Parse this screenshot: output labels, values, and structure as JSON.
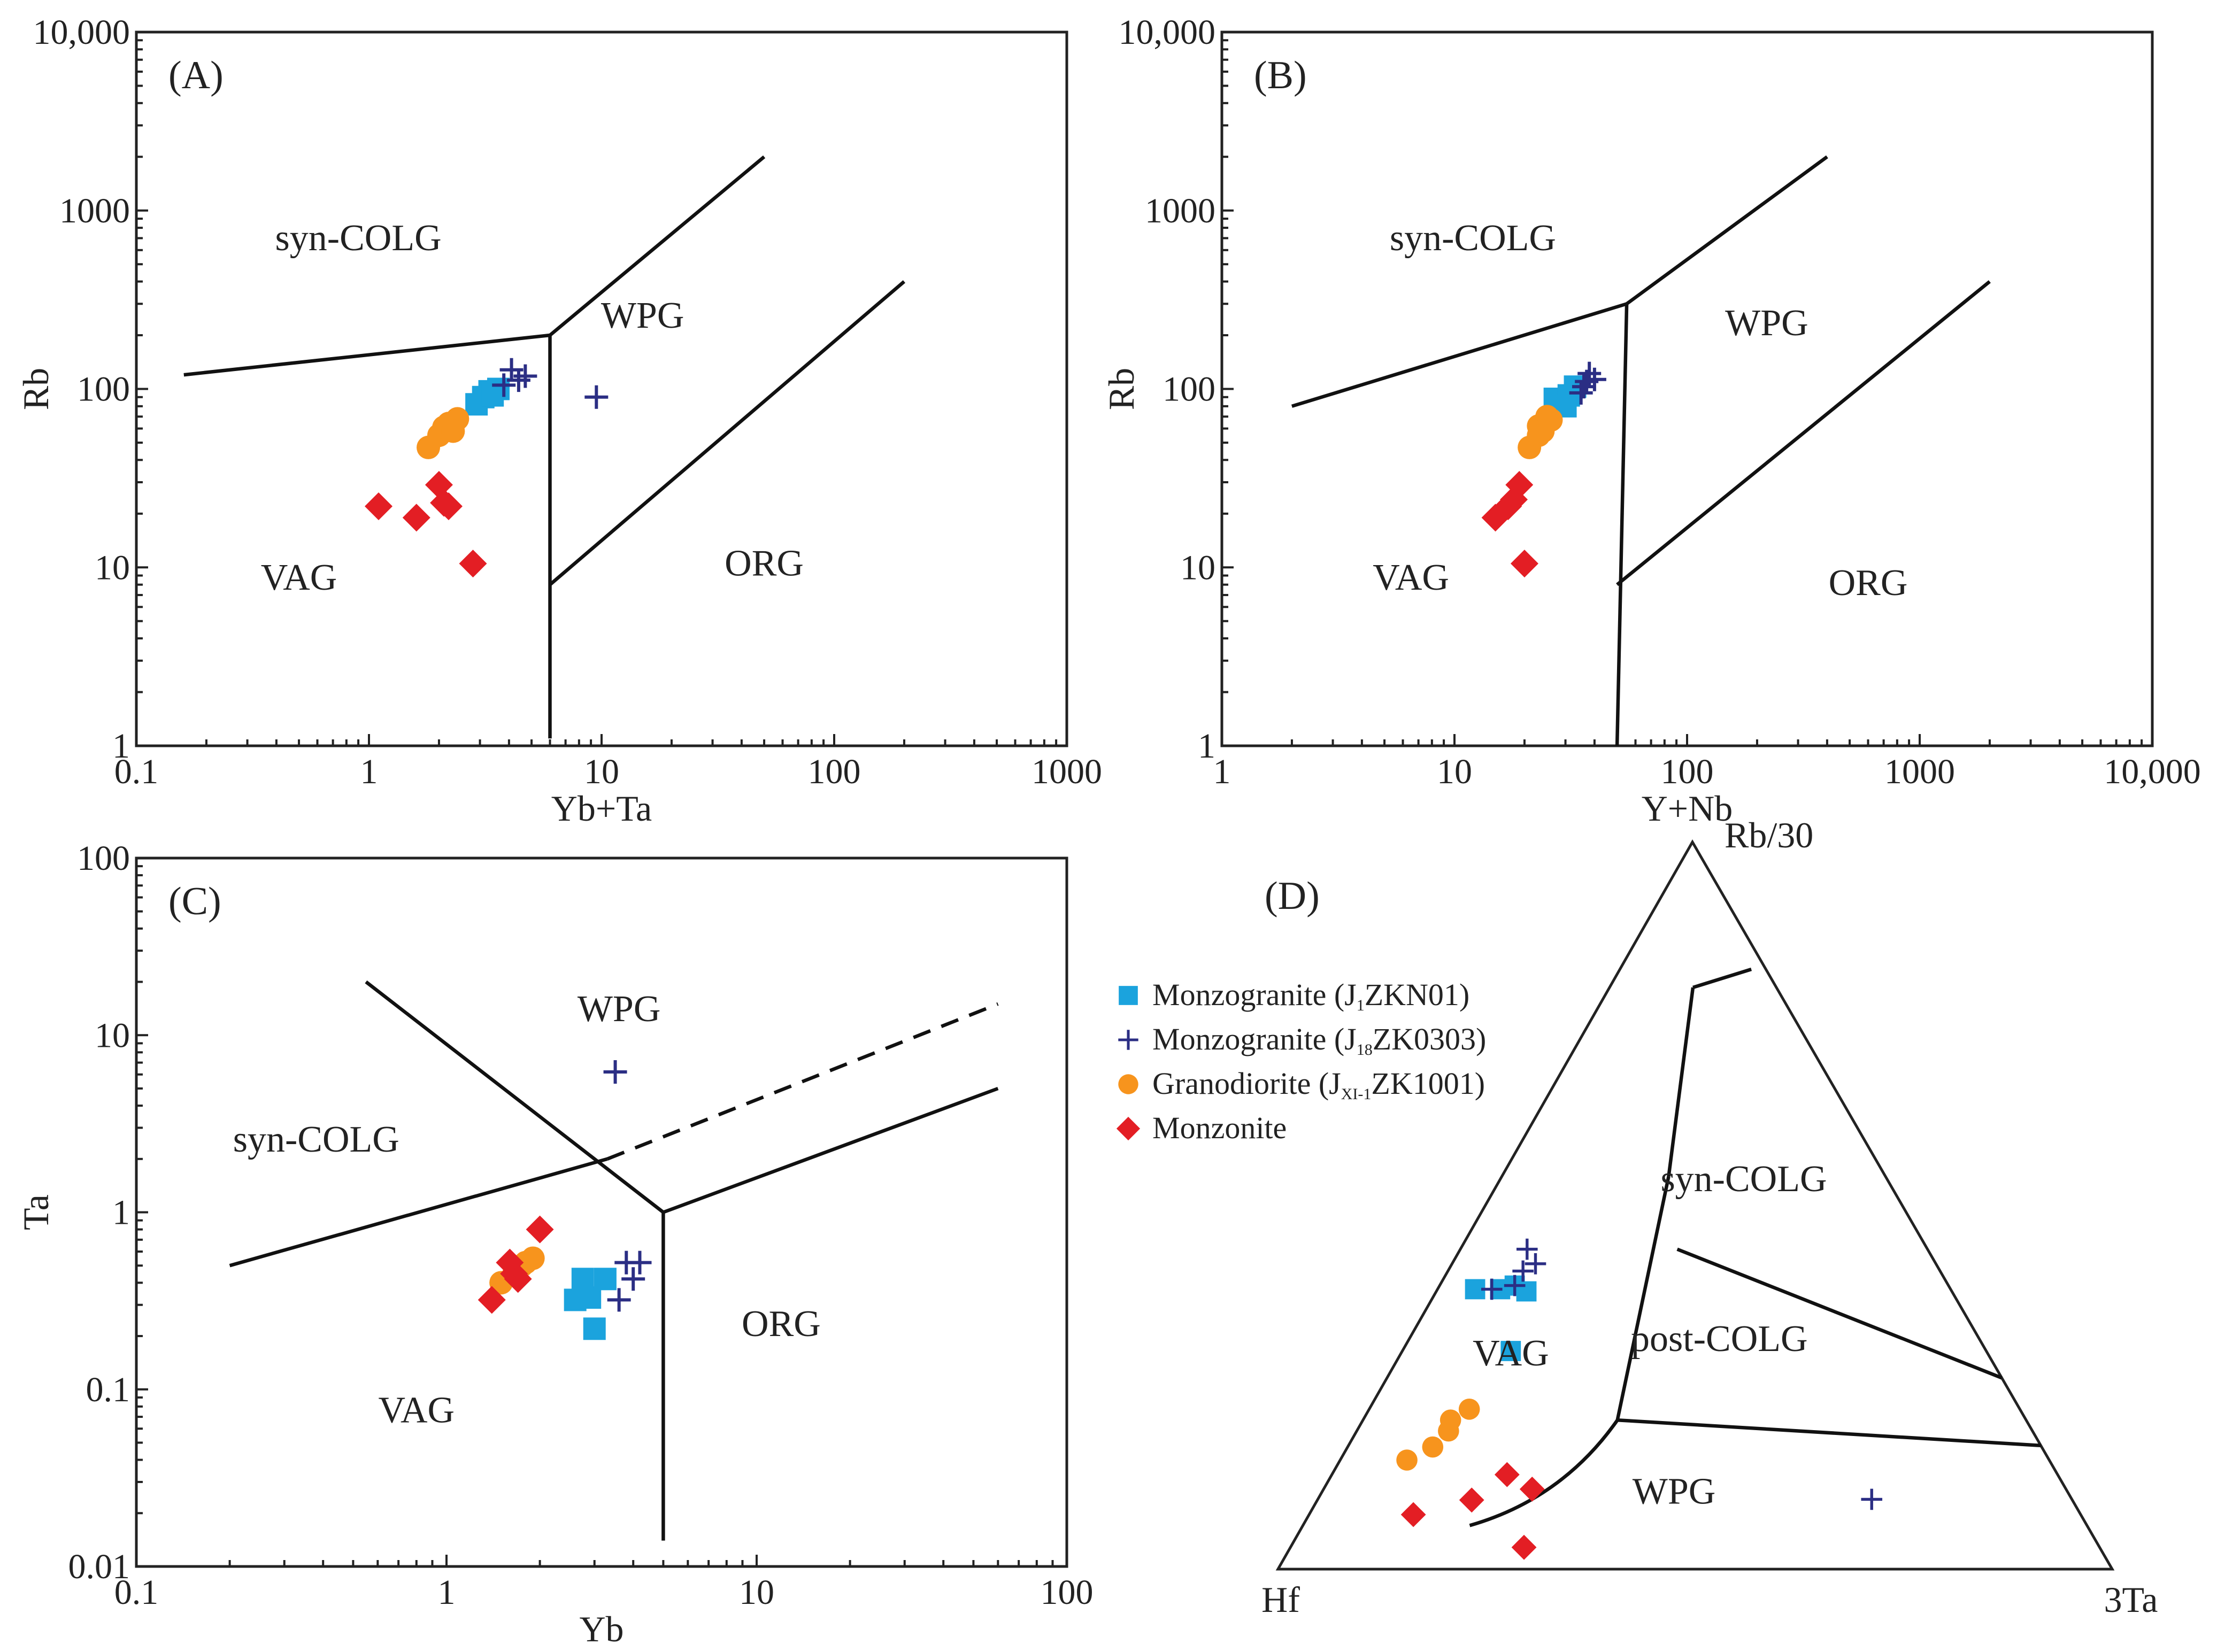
{
  "colors": {
    "monzogranite_j1": "#1ba3dd",
    "monzogranite_j18": "#2b2e84",
    "granodiorite": "#f7941d",
    "monzonite": "#e31e24",
    "lines": "#111111"
  },
  "legend": {
    "items": [
      {
        "key": "monzogranite_j1",
        "marker": "square",
        "prefix": "Monzogranite (J",
        "sub": "1",
        "suffix": "ZKN01)"
      },
      {
        "key": "monzogranite_j18",
        "marker": "plus",
        "prefix": "Monzogranite (J",
        "sub": "18",
        "suffix": "ZK0303)"
      },
      {
        "key": "granodiorite",
        "marker": "circle",
        "prefix": "Granodiorite (J",
        "sub": "XI-1",
        "suffix": "ZK1001)"
      },
      {
        "key": "monzonite",
        "marker": "diamond",
        "prefix": "Monzonite",
        "sub": "",
        "suffix": ""
      }
    ]
  },
  "chart_data": [
    {
      "type": "scatter",
      "panel_label": "(A)",
      "xlabel": "Yb+Ta",
      "ylabel": "Rb",
      "xscale": "log",
      "yscale": "log",
      "xlim": [
        0.1,
        1000
      ],
      "ylim": [
        1,
        10000
      ],
      "xticks": [
        {
          "v": 0.1,
          "t": "0.1"
        },
        {
          "v": 1,
          "t": "1"
        },
        {
          "v": 10,
          "t": "10"
        },
        {
          "v": 100,
          "t": "100"
        },
        {
          "v": 1000,
          "t": "1000"
        }
      ],
      "yticks": [
        {
          "v": 1,
          "t": "1"
        },
        {
          "v": 10,
          "t": "10"
        },
        {
          "v": 100,
          "t": "100"
        },
        {
          "v": 1000,
          "t": "1000"
        },
        {
          "v": 10000,
          "t": "10,000"
        }
      ],
      "regions": [
        {
          "label": "syn-COLG",
          "x": 0.9,
          "y": 600
        },
        {
          "label": "WPG",
          "x": 15,
          "y": 220
        },
        {
          "label": "VAG",
          "x": 0.5,
          "y": 7.5
        },
        {
          "label": "ORG",
          "x": 50,
          "y": 9
        }
      ],
      "boundaries": [
        {
          "points": [
            [
              0.16,
              120
            ],
            [
              6,
              200
            ]
          ]
        },
        {
          "points": [
            [
              6,
              1.1
            ],
            [
              6,
              200
            ]
          ]
        },
        {
          "points": [
            [
              6,
              200
            ],
            [
              50,
              2000
            ]
          ]
        },
        {
          "points": [
            [
              6,
              8
            ],
            [
              200,
              400
            ]
          ]
        }
      ],
      "series": [
        {
          "key": "monzogranite_j1",
          "points": [
            [
              2.9,
              82
            ],
            [
              3.1,
              90
            ],
            [
              3.3,
              97
            ],
            [
              3.6,
              100
            ],
            [
              3.4,
              92
            ]
          ]
        },
        {
          "key": "monzogranite_j18",
          "points": [
            [
              3.8,
              105
            ],
            [
              4.1,
              128
            ],
            [
              4.4,
              112
            ],
            [
              4.7,
              118
            ],
            [
              9.5,
              90
            ]
          ]
        },
        {
          "key": "granodiorite",
          "points": [
            [
              1.8,
              47
            ],
            [
              2.0,
              55
            ],
            [
              2.1,
              61
            ],
            [
              2.2,
              64
            ],
            [
              2.4,
              68
            ],
            [
              2.3,
              58
            ]
          ]
        },
        {
          "key": "monzonite",
          "points": [
            [
              1.1,
              22
            ],
            [
              1.6,
              19
            ],
            [
              2.0,
              29
            ],
            [
              2.1,
              23
            ],
            [
              2.2,
              22
            ],
            [
              2.8,
              10.5
            ]
          ]
        }
      ]
    },
    {
      "type": "scatter",
      "panel_label": "(B)",
      "xlabel": "Y+Nb",
      "ylabel": "Rb",
      "xscale": "log",
      "yscale": "log",
      "xlim": [
        1,
        10000
      ],
      "ylim": [
        1,
        10000
      ],
      "xticks": [
        {
          "v": 1,
          "t": "1"
        },
        {
          "v": 10,
          "t": "10"
        },
        {
          "v": 100,
          "t": "100"
        },
        {
          "v": 1000,
          "t": "1000"
        },
        {
          "v": 10000,
          "t": "10,000"
        }
      ],
      "yticks": [
        {
          "v": 1,
          "t": "1"
        },
        {
          "v": 10,
          "t": "10"
        },
        {
          "v": 100,
          "t": "100"
        },
        {
          "v": 1000,
          "t": "1000"
        },
        {
          "v": 10000,
          "t": "10,000"
        }
      ],
      "regions": [
        {
          "label": "syn-COLG",
          "x": 12,
          "y": 600
        },
        {
          "label": "WPG",
          "x": 220,
          "y": 200
        },
        {
          "label": "VAG",
          "x": 6.5,
          "y": 7.5
        },
        {
          "label": "ORG",
          "x": 600,
          "y": 7
        }
      ],
      "boundaries": [
        {
          "points": [
            [
              2,
              80
            ],
            [
              55,
              300
            ]
          ]
        },
        {
          "points": [
            [
              55,
              300
            ],
            [
              50,
              1
            ]
          ]
        },
        {
          "points": [
            [
              55,
              300
            ],
            [
              400,
              2000
            ]
          ]
        },
        {
          "points": [
            [
              50,
              8
            ],
            [
              2000,
              400
            ]
          ]
        }
      ],
      "series": [
        {
          "key": "monzogranite_j1",
          "points": [
            [
              27,
              88
            ],
            [
              29,
              84
            ],
            [
              31,
              92
            ],
            [
              33,
              103
            ],
            [
              30,
              80
            ]
          ]
        },
        {
          "key": "monzogranite_j18",
          "points": [
            [
              35,
              95
            ],
            [
              37,
              110
            ],
            [
              38,
              122
            ],
            [
              40,
              113
            ],
            [
              36,
              103
            ]
          ]
        },
        {
          "key": "granodiorite",
          "points": [
            [
              21,
              47
            ],
            [
              23,
              55
            ],
            [
              23,
              62
            ],
            [
              25,
              70
            ],
            [
              26,
              67
            ],
            [
              24,
              58
            ]
          ]
        },
        {
          "key": "monzonite",
          "points": [
            [
              15,
              19
            ],
            [
              17,
              22
            ],
            [
              18,
              24
            ],
            [
              19,
              29
            ],
            [
              20,
              10.5
            ]
          ]
        }
      ]
    },
    {
      "type": "scatter",
      "panel_label": "(C)",
      "xlabel": "Yb",
      "ylabel": "Ta",
      "xscale": "log",
      "yscale": "log",
      "xlim": [
        0.1,
        100
      ],
      "ylim": [
        0.01,
        100
      ],
      "xticks": [
        {
          "v": 0.1,
          "t": "0.1"
        },
        {
          "v": 1,
          "t": "1"
        },
        {
          "v": 10,
          "t": "10"
        },
        {
          "v": 100,
          "t": "100"
        }
      ],
      "yticks": [
        {
          "v": 0.01,
          "t": "0.01"
        },
        {
          "v": 0.1,
          "t": "0.1"
        },
        {
          "v": 1,
          "t": "1"
        },
        {
          "v": 10,
          "t": "10"
        },
        {
          "v": 100,
          "t": "100"
        }
      ],
      "regions": [
        {
          "label": "syn-COLG",
          "x": 0.38,
          "y": 2.2
        },
        {
          "label": "WPG",
          "x": 3.6,
          "y": 12
        },
        {
          "label": "VAG",
          "x": 0.8,
          "y": 0.065
        },
        {
          "label": "ORG",
          "x": 12,
          "y": 0.2
        }
      ],
      "boundaries": [
        {
          "points": [
            [
              0.2,
              0.5
            ],
            [
              3.3,
              2.0
            ]
          ]
        },
        {
          "points": [
            [
              0.55,
              20
            ],
            [
              5,
              1
            ]
          ]
        },
        {
          "points": [
            [
              5,
              1
            ],
            [
              5,
              0.014
            ]
          ]
        },
        {
          "points": [
            [
              5,
              1
            ],
            [
              60,
              5
            ]
          ]
        },
        {
          "points": [
            [
              3.3,
              2.0
            ],
            [
              60,
              15
            ]
          ],
          "dashed": true
        }
      ],
      "series": [
        {
          "key": "monzogranite_j1",
          "points": [
            [
              2.6,
              0.32
            ],
            [
              2.75,
              0.42
            ],
            [
              2.9,
              0.33
            ],
            [
              3.0,
              0.22
            ],
            [
              3.25,
              0.42
            ]
          ]
        },
        {
          "key": "monzogranite_j18",
          "points": [
            [
              3.5,
              6.2
            ],
            [
              3.6,
              0.32
            ],
            [
              3.8,
              0.52
            ],
            [
              4.0,
              0.42
            ],
            [
              4.2,
              0.52
            ]
          ]
        },
        {
          "key": "granodiorite",
          "points": [
            [
              1.5,
              0.4
            ],
            [
              1.65,
              0.45
            ],
            [
              1.75,
              0.5
            ],
            [
              1.8,
              0.52
            ],
            [
              1.9,
              0.55
            ]
          ]
        },
        {
          "key": "monzonite",
          "points": [
            [
              1.4,
              0.32
            ],
            [
              1.6,
              0.52
            ],
            [
              1.65,
              0.45
            ],
            [
              1.7,
              0.42
            ],
            [
              2.0,
              0.8
            ]
          ]
        }
      ]
    },
    {
      "type": "ternary",
      "panel_label": "(D)",
      "apex_labels": {
        "top": "Rb/30",
        "left": "Hf",
        "right": "3Ta"
      },
      "regions": [
        {
          "label": "syn-COLG",
          "a": 0.52,
          "b": 0.18,
          "c": 0.3
        },
        {
          "label": "post-COLG",
          "a": 0.3,
          "b": 0.32,
          "c": 0.38
        },
        {
          "label": "VAG",
          "a": 0.28,
          "b": 0.58,
          "c": 0.14
        },
        {
          "label": "WPG",
          "a": 0.09,
          "b": 0.48,
          "c": 0.43
        }
      ],
      "boundaries": [
        {
          "points": [
            [
              0.8,
              0.1,
              0.1
            ],
            [
              0.825,
              0.0175,
              0.1575
            ]
          ]
        },
        {
          "points": [
            [
              0.8,
              0.1,
              0.1
            ],
            [
              0.54,
              0.26,
              0.2
            ]
          ]
        },
        {
          "points": [
            [
              0.54,
              0.26,
              0.2
            ],
            [
              0.205,
              0.49,
              0.305
            ]
          ]
        },
        {
          "points": [
            [
              0.205,
              0.49,
              0.305
            ],
            [
              0.17,
              0.0,
              0.83
            ]
          ]
        },
        {
          "points": [
            [
              0.44,
              0.3,
              0.26
            ],
            [
              0.263,
              0.0,
              0.737
            ]
          ]
        },
        {
          "points": [
            [
              0.205,
              0.49,
              0.305
            ],
            [
              0.06,
              0.74,
              0.2
            ]
          ],
          "curve": true
        }
      ],
      "series": [
        {
          "key": "monzogranite_j1",
          "points": [
            [
              0.385,
              0.57,
              0.045
            ],
            [
              0.385,
              0.54,
              0.075
            ],
            [
              0.39,
              0.52,
              0.09
            ],
            [
              0.382,
              0.51,
              0.108
            ],
            [
              0.3,
              0.57,
              0.13
            ]
          ]
        },
        {
          "key": "monzogranite_j18",
          "points": [
            [
              0.385,
              0.55,
              0.065
            ],
            [
              0.39,
              0.52,
              0.09
            ],
            [
              0.41,
              0.5,
              0.09
            ],
            [
              0.44,
              0.48,
              0.08
            ],
            [
              0.42,
              0.48,
              0.1
            ],
            [
              0.096,
              0.24,
              0.664
            ]
          ]
        },
        {
          "key": "granodiorite",
          "points": [
            [
              0.15,
              0.77,
              0.08
            ],
            [
              0.168,
              0.73,
              0.102
            ],
            [
              0.19,
              0.7,
              0.11
            ],
            [
              0.205,
              0.69,
              0.105
            ],
            [
              0.22,
              0.66,
              0.12
            ]
          ]
        },
        {
          "key": "monzonite",
          "points": [
            [
              0.075,
              0.8,
              0.125
            ],
            [
              0.095,
              0.72,
              0.185
            ],
            [
              0.13,
              0.66,
              0.21
            ],
            [
              0.11,
              0.64,
              0.25
            ],
            [
              0.03,
              0.69,
              0.28
            ]
          ]
        }
      ]
    }
  ]
}
